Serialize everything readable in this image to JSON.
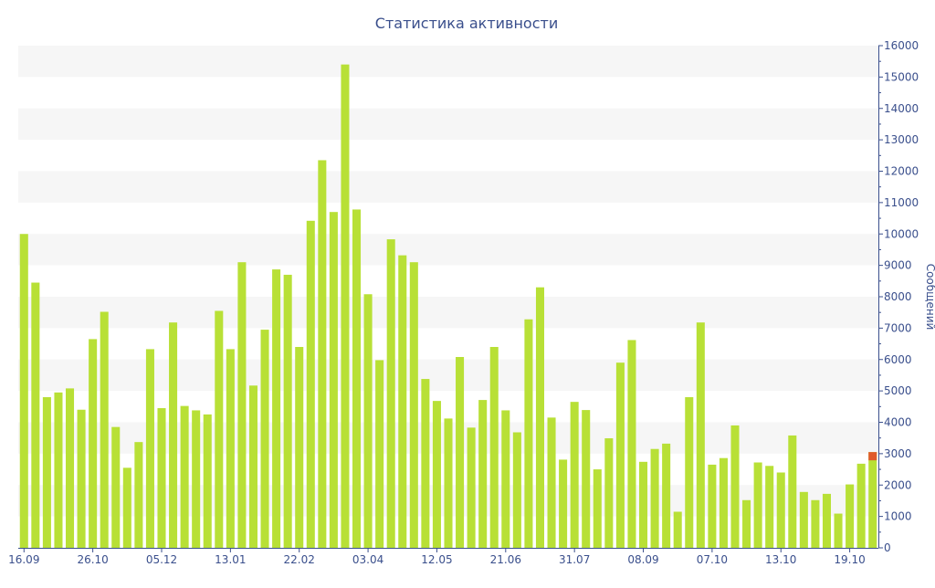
{
  "chart_data": {
    "type": "bar",
    "title": "Статистика активности",
    "xlabel": "",
    "ylabel": "Сообщений",
    "ylim": [
      0,
      16000
    ],
    "y_ticks": [
      0,
      1000,
      2000,
      3000,
      4000,
      5000,
      6000,
      7000,
      8000,
      9000,
      10000,
      11000,
      12000,
      13000,
      14000,
      15000,
      16000
    ],
    "y_axis_position": "right",
    "x_tick_labels": [
      {
        "index": 0,
        "label": "16.09"
      },
      {
        "index": 6,
        "label": "26.10"
      },
      {
        "index": 12,
        "label": "05.12"
      },
      {
        "index": 18,
        "label": "13.01"
      },
      {
        "index": 24,
        "label": "22.02"
      },
      {
        "index": 30,
        "label": "03.04"
      },
      {
        "index": 36,
        "label": "12.05"
      },
      {
        "index": 42,
        "label": "21.06"
      },
      {
        "index": 48,
        "label": "31.07"
      },
      {
        "index": 54,
        "label": "08.09"
      },
      {
        "index": 60,
        "label": "07.10"
      },
      {
        "index": 66,
        "label": "13.10"
      },
      {
        "index": 72,
        "label": "19.10"
      }
    ],
    "values": [
      10000,
      8450,
      4800,
      4950,
      5080,
      4400,
      6650,
      7520,
      3850,
      2550,
      3370,
      6330,
      4450,
      7180,
      4520,
      4380,
      4250,
      7550,
      6330,
      9100,
      5170,
      6950,
      8870,
      8700,
      6400,
      10420,
      12350,
      10700,
      15400,
      10780,
      8080,
      5980,
      9830,
      9320,
      9100,
      5380,
      4680,
      4120,
      6080,
      3830,
      4710,
      6400,
      4380,
      3680,
      7280,
      8300,
      4150,
      2810,
      4650,
      4390,
      2500,
      3490,
      5900,
      6620,
      2740,
      3150,
      3320,
      1150,
      4800,
      7180,
      2650,
      2860,
      3900,
      1520,
      2720,
      2610,
      2400,
      3580,
      1780,
      1520,
      1720,
      1090,
      2020,
      2680,
      3050
    ],
    "highlight_index": 74,
    "highlight_color": "#e05a2b",
    "bar_color": "#b8e036",
    "grid": "alternating horizontal bands",
    "band_color": "#f6f6f6",
    "text_color": "#3a4f8c",
    "axis_color": "#3a4f8c"
  }
}
